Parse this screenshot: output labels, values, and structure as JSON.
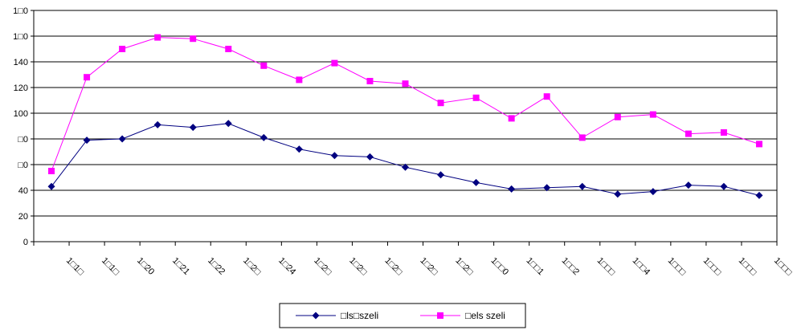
{
  "chart_data": {
    "type": "line",
    "title": "",
    "xlabel": "",
    "ylabel": "",
    "ylim": [
      0,
      160
    ],
    "y_ticks": [
      "0",
      "20",
      "40",
      "□0",
      "□0",
      "100",
      "120",
      "140",
      "1□0",
      "1□0"
    ],
    "y_tick_values": [
      0,
      20,
      40,
      60,
      80,
      100,
      120,
      140,
      160,
      180
    ],
    "categories": [
      "1□1□",
      "1□1□",
      "1□20",
      "1□21",
      "1□22",
      "1□2□",
      "1□24",
      "1□2□",
      "1□2□",
      "1□2□",
      "1□2□",
      "1□2□",
      "1□□0",
      "1□□1",
      "1□□2",
      "1□□□",
      "1□□4",
      "1□□□",
      "1□□□",
      "1□□□",
      "1□□□"
    ],
    "grid": true,
    "legend_position": "bottom",
    "series": [
      {
        "name": "□ls□szeli",
        "color": "#000080",
        "marker": "diamond",
        "values": [
          43,
          79,
          80,
          91,
          89,
          92,
          81,
          72,
          67,
          66,
          58,
          52,
          46,
          41,
          42,
          43,
          37,
          39,
          44,
          43,
          36
        ]
      },
      {
        "name": "□els szeli",
        "color": "#FF00FF",
        "marker": "square",
        "values": [
          55,
          128,
          150,
          159,
          158,
          150,
          137,
          126,
          139,
          125,
          123,
          108,
          112,
          96,
          113,
          81,
          97,
          99,
          84,
          85,
          76
        ]
      }
    ]
  }
}
